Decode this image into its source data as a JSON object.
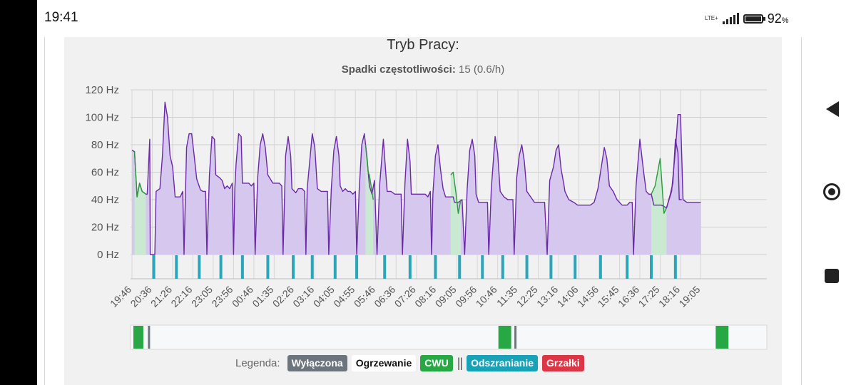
{
  "status": {
    "time": "19:41",
    "network": "LTE+",
    "battery_level": "92",
    "battery_unit": "%"
  },
  "card": {
    "title": "Tryb Pracy:",
    "subtitle_label": "Spadki częstotliwości:",
    "subtitle_value": "15 (0.6/h)"
  },
  "legend": {
    "label": "Legenda:",
    "separator": "||",
    "items": [
      {
        "label": "Wyłączona",
        "bg": "#6c757d",
        "fg": "#ffffff"
      },
      {
        "label": "Ogrzewanie",
        "bg": "#ffffff",
        "fg": "#111111"
      },
      {
        "label": "CWU",
        "bg": "#28a745",
        "fg": "#ffffff"
      },
      {
        "label": "Odszranianie",
        "bg": "#17a2b8",
        "fg": "#ffffff"
      },
      {
        "label": "Grzałki",
        "bg": "#dc3545",
        "fg": "#ffffff"
      }
    ]
  },
  "chart_data": {
    "type": "area",
    "ylabel": "Hz",
    "ylim": [
      0,
      120
    ],
    "ytick_labels": [
      "0 Hz",
      "20 Hz",
      "40 Hz",
      "60 Hz",
      "80 Hz",
      "100 Hz",
      "120 Hz"
    ],
    "x_range": [
      0,
      22.4
    ],
    "categories": [
      "19:46",
      "20:36",
      "21:26",
      "22:16",
      "23:05",
      "23:56",
      "00:46",
      "01:35",
      "02:26",
      "03:16",
      "04:05",
      "04:55",
      "05:46",
      "06:36",
      "07:26",
      "08:16",
      "09:05",
      "09:56",
      "10:46",
      "11:35",
      "12:25",
      "13:16",
      "14:06",
      "14:56",
      "15:45",
      "16:36",
      "17:25",
      "18:16",
      "19:05"
    ],
    "series": [
      {
        "name": "Ogrzewanie",
        "color": "#6a2aa6",
        "fill": "#d6c7ee",
        "points": [
          [
            0,
            76
          ],
          [
            0.1,
            75
          ],
          [
            0.2,
            42
          ],
          [
            0.3,
            52
          ],
          [
            0.4,
            46
          ],
          [
            0.55,
            44
          ],
          [
            0.6,
            44
          ],
          [
            0.7,
            84
          ],
          [
            0.72,
            0
          ],
          [
            0.9,
            0
          ],
          [
            0.95,
            46
          ],
          [
            1.1,
            48
          ],
          [
            1.2,
            72
          ],
          [
            1.3,
            111
          ],
          [
            1.4,
            100
          ],
          [
            1.5,
            72
          ],
          [
            1.6,
            64
          ],
          [
            1.7,
            42
          ],
          [
            1.8,
            42
          ],
          [
            1.9,
            42
          ],
          [
            2.0,
            46
          ],
          [
            2.05,
            0
          ],
          [
            2.15,
            78
          ],
          [
            2.25,
            88
          ],
          [
            2.35,
            88
          ],
          [
            2.45,
            72
          ],
          [
            2.55,
            55
          ],
          [
            2.7,
            47
          ],
          [
            2.8,
            46
          ],
          [
            2.9,
            46
          ],
          [
            2.95,
            0
          ],
          [
            3.05,
            58
          ],
          [
            3.15,
            86
          ],
          [
            3.25,
            84
          ],
          [
            3.3,
            58
          ],
          [
            3.45,
            56
          ],
          [
            3.55,
            54
          ],
          [
            3.65,
            48
          ],
          [
            3.75,
            50
          ],
          [
            3.85,
            48
          ],
          [
            3.95,
            52
          ],
          [
            4.0,
            0
          ],
          [
            4.05,
            48
          ],
          [
            4.1,
            66
          ],
          [
            4.2,
            88
          ],
          [
            4.3,
            86
          ],
          [
            4.35,
            52
          ],
          [
            4.5,
            52
          ],
          [
            4.6,
            52
          ],
          [
            4.7,
            50
          ],
          [
            4.8,
            52
          ],
          [
            4.85,
            0
          ],
          [
            4.95,
            56
          ],
          [
            5.05,
            80
          ],
          [
            5.15,
            88
          ],
          [
            5.25,
            78
          ],
          [
            5.35,
            58
          ],
          [
            5.45,
            55
          ],
          [
            5.55,
            52
          ],
          [
            5.7,
            52
          ],
          [
            5.8,
            52
          ],
          [
            5.9,
            50
          ],
          [
            5.95,
            0
          ],
          [
            6.05,
            72
          ],
          [
            6.15,
            86
          ],
          [
            6.25,
            72
          ],
          [
            6.3,
            48
          ],
          [
            6.45,
            45
          ],
          [
            6.55,
            48
          ],
          [
            6.7,
            48
          ],
          [
            6.8,
            46
          ],
          [
            6.85,
            0
          ],
          [
            6.9,
            48
          ],
          [
            7.1,
            88
          ],
          [
            7.2,
            78
          ],
          [
            7.3,
            48
          ],
          [
            7.45,
            46
          ],
          [
            7.55,
            46
          ],
          [
            7.7,
            46
          ],
          [
            7.75,
            0
          ],
          [
            7.85,
            48
          ],
          [
            7.95,
            76
          ],
          [
            8.05,
            86
          ],
          [
            8.15,
            72
          ],
          [
            8.2,
            50
          ],
          [
            8.3,
            46
          ],
          [
            8.4,
            48
          ],
          [
            8.5,
            46
          ],
          [
            8.6,
            46
          ],
          [
            8.7,
            44
          ],
          [
            8.8,
            46
          ],
          [
            8.85,
            0
          ],
          [
            8.95,
            48
          ],
          [
            9.05,
            80
          ],
          [
            9.15,
            88
          ],
          [
            9.25,
            72
          ],
          [
            9.35,
            50
          ],
          [
            9.45,
            44
          ],
          [
            9.55,
            54
          ],
          [
            9.65,
            0
          ],
          [
            9.75,
            50
          ],
          [
            9.9,
            84
          ],
          [
            10.0,
            58
          ],
          [
            10.05,
            46
          ],
          [
            10.2,
            46
          ],
          [
            10.35,
            44
          ],
          [
            10.5,
            44
          ],
          [
            10.6,
            44
          ],
          [
            10.65,
            0
          ],
          [
            10.75,
            52
          ],
          [
            10.85,
            84
          ],
          [
            10.95,
            68
          ],
          [
            11.0,
            44
          ],
          [
            11.2,
            44
          ],
          [
            11.4,
            44
          ],
          [
            11.55,
            44
          ],
          [
            11.65,
            42
          ],
          [
            11.75,
            46
          ],
          [
            11.8,
            0
          ],
          [
            11.85,
            44
          ],
          [
            11.95,
            72
          ],
          [
            12.05,
            80
          ],
          [
            12.15,
            62
          ],
          [
            12.25,
            48
          ],
          [
            12.35,
            42
          ],
          [
            12.5,
            42
          ],
          [
            12.65,
            42
          ],
          [
            12.7,
            38
          ],
          [
            12.85,
            38
          ],
          [
            13.0,
            40
          ],
          [
            13.1,
            0
          ],
          [
            13.2,
            48
          ],
          [
            13.3,
            76
          ],
          [
            13.4,
            84
          ],
          [
            13.5,
            72
          ],
          [
            13.55,
            44
          ],
          [
            13.65,
            38
          ],
          [
            13.8,
            38
          ],
          [
            13.9,
            38
          ],
          [
            14.0,
            38
          ],
          [
            14.05,
            0
          ],
          [
            14.15,
            48
          ],
          [
            14.3,
            86
          ],
          [
            14.4,
            74
          ],
          [
            14.5,
            46
          ],
          [
            14.65,
            42
          ],
          [
            14.8,
            40
          ],
          [
            15.0,
            40
          ],
          [
            15.05,
            0
          ],
          [
            15.15,
            56
          ],
          [
            15.25,
            72
          ],
          [
            15.35,
            80
          ],
          [
            15.45,
            68
          ],
          [
            15.55,
            46
          ],
          [
            15.7,
            42
          ],
          [
            15.85,
            38
          ],
          [
            16.05,
            38
          ],
          [
            16.25,
            38
          ],
          [
            16.35,
            0
          ],
          [
            16.45,
            54
          ],
          [
            16.6,
            64
          ],
          [
            16.7,
            76
          ],
          [
            16.8,
            80
          ],
          [
            16.9,
            62
          ],
          [
            17.0,
            52
          ],
          [
            17.05,
            46
          ],
          [
            17.2,
            40
          ],
          [
            17.4,
            38
          ],
          [
            17.55,
            36
          ],
          [
            17.7,
            36
          ],
          [
            17.85,
            36
          ],
          [
            18.05,
            36
          ],
          [
            18.2,
            38
          ],
          [
            18.35,
            48
          ],
          [
            18.5,
            66
          ],
          [
            18.6,
            78
          ],
          [
            18.7,
            70
          ],
          [
            18.8,
            50
          ],
          [
            18.95,
            46
          ],
          [
            19.1,
            40
          ],
          [
            19.3,
            36
          ],
          [
            19.5,
            36
          ],
          [
            19.6,
            38
          ],
          [
            19.7,
            38
          ],
          [
            19.75,
            0
          ],
          [
            19.85,
            50
          ],
          [
            20.0,
            84
          ],
          [
            20.15,
            60
          ],
          [
            20.25,
            46
          ],
          [
            20.35,
            44
          ],
          [
            20.45,
            44
          ],
          [
            20.55,
            36
          ],
          [
            20.65,
            36
          ],
          [
            20.75,
            36
          ],
          [
            20.85,
            36
          ],
          [
            21.05,
            34
          ],
          [
            21.2,
            44
          ],
          [
            21.3,
            52
          ],
          [
            21.4,
            84
          ],
          [
            21.5,
            74
          ],
          [
            21.55,
            40
          ],
          [
            21.65,
            40
          ]
        ]
      },
      {
        "name": "CWU",
        "color": "#2a9a3c",
        "fill": "#c9ead0",
        "points": [
          [
            0.1,
            75
          ],
          [
            0.2,
            42
          ],
          [
            0.3,
            52
          ],
          [
            0.4,
            46
          ],
          [
            0.55,
            44
          ]
        ]
      },
      {
        "name": "CWU",
        "color": "#2a9a3c",
        "fill": "#c9ead0",
        "points": [
          [
            9.2,
            80
          ],
          [
            9.3,
            60
          ],
          [
            9.35,
            58
          ],
          [
            9.5,
            40
          ]
        ]
      },
      {
        "name": "CWU",
        "color": "#2a9a3c",
        "fill": "#c9ead0",
        "points": [
          [
            12.55,
            58
          ],
          [
            12.65,
            60
          ],
          [
            12.75,
            46
          ],
          [
            12.85,
            30
          ],
          [
            12.95,
            40
          ]
        ]
      },
      {
        "name": "CWU",
        "color": "#2a9a3c",
        "fill": "#c9ead0",
        "points": [
          [
            20.45,
            44
          ],
          [
            20.6,
            50
          ],
          [
            20.8,
            70
          ],
          [
            20.95,
            30
          ],
          [
            21.05,
            34
          ]
        ]
      },
      {
        "name": "Ogrzewanie",
        "color": "#6a2aa6",
        "fill": "#d6c7ee",
        "points": [
          [
            21.05,
            34
          ],
          [
            21.25,
            46
          ],
          [
            21.4,
            76
          ],
          [
            21.5,
            102
          ],
          [
            21.6,
            102
          ],
          [
            21.7,
            40
          ],
          [
            21.85,
            38
          ],
          [
            22.0,
            38
          ],
          [
            22.2,
            38
          ],
          [
            22.4,
            38
          ]
        ]
      }
    ],
    "defrost_events": [
      0.86,
      1.75,
      2.65,
      3.5,
      4.35,
      5.35,
      6.35,
      7.1,
      8.0,
      8.85,
      9.95,
      10.95,
      11.95,
      12.9,
      13.8,
      14.6,
      15.55,
      16.5,
      17.45,
      18.45,
      19.5,
      20.45,
      21.4
    ],
    "navigator_cwu": [
      [
        0.1,
        0.45
      ],
      [
        12.95,
        13.4
      ],
      [
        20.6,
        21.05
      ]
    ],
    "navigator_off": [
      0.65,
      13.55
    ]
  }
}
